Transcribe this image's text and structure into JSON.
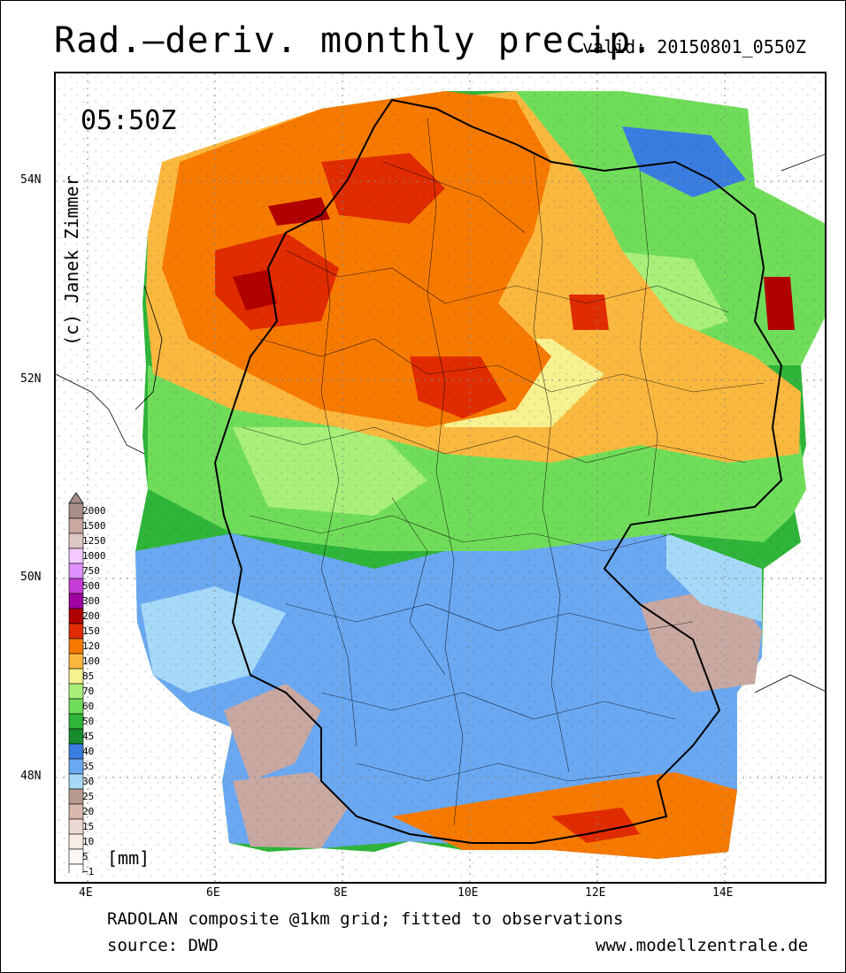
{
  "header": {
    "title": "Rad.–deriv. monthly precip.",
    "valid": "valid: 20150801_0550Z"
  },
  "map": {
    "time_label": "05:50Z",
    "credit": "(c) Janek Zimmer",
    "lat_labels": [
      "54N",
      "52N",
      "50N",
      "48N"
    ],
    "lon_labels": [
      "4E",
      "6E",
      "8E",
      "10E",
      "12E",
      "14E"
    ]
  },
  "legend": {
    "unit": "[mm]",
    "items": [
      {
        "label": "2000",
        "color": "#a88f8a"
      },
      {
        "label": "1500",
        "color": "#c9a8a2"
      },
      {
        "label": "1250",
        "color": "#ddc8c3"
      },
      {
        "label": "1000",
        "color": "#f3c9ff"
      },
      {
        "label": "750",
        "color": "#e090ff"
      },
      {
        "label": "500",
        "color": "#c43bd6"
      },
      {
        "label": "300",
        "color": "#a000a0"
      },
      {
        "label": "200",
        "color": "#b00000"
      },
      {
        "label": "150",
        "color": "#e02c00"
      },
      {
        "label": "120",
        "color": "#f77a00"
      },
      {
        "label": "100",
        "color": "#fbb83f"
      },
      {
        "label": "85",
        "color": "#f7f18f"
      },
      {
        "label": "70",
        "color": "#a8f07a"
      },
      {
        "label": "60",
        "color": "#70dd5a"
      },
      {
        "label": "50",
        "color": "#2fb53a"
      },
      {
        "label": "45",
        "color": "#168c2c"
      },
      {
        "label": "40",
        "color": "#3a7de0"
      },
      {
        "label": "35",
        "color": "#6aa8f2"
      },
      {
        "label": "30",
        "color": "#a6d9f8"
      },
      {
        "label": "25",
        "color": "#b89a90"
      },
      {
        "label": "20",
        "color": "#d9b8ae"
      },
      {
        "label": "15",
        "color": "#ecd8d2"
      },
      {
        "label": "10",
        "color": "#f7ebe6"
      },
      {
        "label": "5",
        "color": "#fbf7f4"
      },
      {
        "label": "−1",
        "color": "#ffffff"
      }
    ]
  },
  "footer": {
    "line1": "RADOLAN composite @1km grid; fitted to observations",
    "line2": "source: DWD",
    "url": "www.modellzentrale.de"
  }
}
